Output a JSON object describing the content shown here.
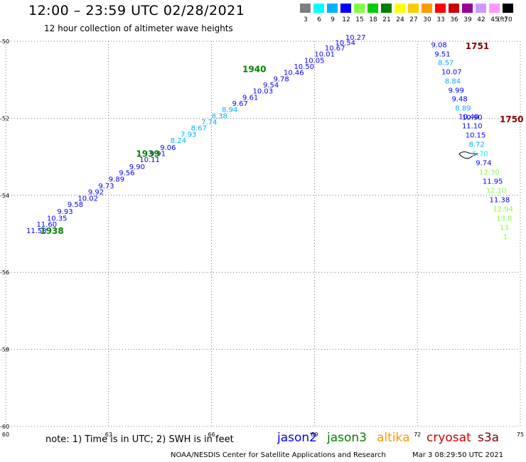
{
  "title": "12:00 – 23:59 UTC 02/28/2021",
  "subtitle": "12 hour collection of altimeter wave heights",
  "color_scale": {
    "labels": [
      "3",
      "6",
      "9",
      "12",
      "15",
      "18",
      "21",
      "24",
      "27",
      "30",
      "33",
      "36",
      "39",
      "42",
      "45",
      "70"
    ],
    "unit": "(ft)",
    "colors": [
      "#7f7f7f",
      "#00ffff",
      "#00b0ff",
      "#0000ff",
      "#80ff40",
      "#00cc00",
      "#008000",
      "#ffff00",
      "#ffcc00",
      "#ff9900",
      "#ff0000",
      "#cc0000",
      "#990099",
      "#cc99ff",
      "#ff99ff",
      "#000000"
    ]
  },
  "note": "note: 1) Time is in UTC; 2) SWH is in feet",
  "satellites": [
    {
      "name": "jason2",
      "color": "#0000ff"
    },
    {
      "name": "jason3",
      "color": "#008000"
    },
    {
      "name": "altika",
      "color": "#ff9900"
    },
    {
      "name": "cryosat",
      "color": "#cc0000"
    },
    {
      "name": "s3a",
      "color": "#800000"
    }
  ],
  "credit_left": "NOAA/NESDIS Center for Satellite Applications and Research",
  "credit_right": "Mar  3 08:29:50 UTC 2021",
  "chart_data": {
    "type": "scatter",
    "title": "12:00 – 23:59 UTC 02/28/2021",
    "xlabel": "",
    "ylabel": "",
    "xlim": [
      60,
      75
    ],
    "ylim": [
      -60,
      -50
    ],
    "xticks": [
      "60",
      "63",
      "66",
      "69",
      "72",
      "75"
    ],
    "yticks": [
      "-50",
      "-52",
      "-54",
      "-56",
      "-58",
      "-60"
    ],
    "grid": true,
    "series": [
      {
        "name": "jason3",
        "color": "#008000",
        "time_labels": [
          {
            "text": "1938",
            "x": 61.0,
            "y": -55.0
          },
          {
            "text": "1939",
            "x": 63.8,
            "y": -53.0
          },
          {
            "text": "1940",
            "x": 66.9,
            "y": -50.8
          }
        ],
        "points": [
          {
            "x": 60.6,
            "y": -54.98,
            "v": "11.58",
            "c": "#0000ff"
          },
          {
            "x": 60.9,
            "y": -54.82,
            "v": "11.60",
            "c": "#0000ff"
          },
          {
            "x": 61.2,
            "y": -54.66,
            "v": "10.35",
            "c": "#0000ff"
          },
          {
            "x": 61.5,
            "y": -54.48,
            "v": "9.93",
            "c": "#0000ff"
          },
          {
            "x": 61.8,
            "y": -54.3,
            "v": "9.58",
            "c": "#0000ff"
          },
          {
            "x": 62.1,
            "y": -54.14,
            "v": "10.02",
            "c": "#0000ff"
          },
          {
            "x": 62.4,
            "y": -53.98,
            "v": "9.92",
            "c": "#0000ff"
          },
          {
            "x": 62.7,
            "y": -53.82,
            "v": "9.73",
            "c": "#0000ff"
          },
          {
            "x": 63.0,
            "y": -53.64,
            "v": "9.89",
            "c": "#0000ff"
          },
          {
            "x": 63.3,
            "y": -53.48,
            "v": "9.56",
            "c": "#0000ff"
          },
          {
            "x": 63.6,
            "y": -53.32,
            "v": "9.90",
            "c": "#0000ff"
          },
          {
            "x": 63.9,
            "y": -53.14,
            "v": "10.11",
            "c": "#0000ff"
          },
          {
            "x": 64.2,
            "y": -52.98,
            "v": "9.91",
            "c": "#0000ff"
          },
          {
            "x": 64.5,
            "y": -52.82,
            "v": "9.06",
            "c": "#0000ff"
          },
          {
            "x": 64.8,
            "y": -52.64,
            "v": "8.24",
            "c": "#00b0ff"
          },
          {
            "x": 65.1,
            "y": -52.48,
            "v": "7.93",
            "c": "#00b0ff"
          },
          {
            "x": 65.4,
            "y": -52.32,
            "v": "8.67",
            "c": "#00b0ff"
          },
          {
            "x": 65.7,
            "y": -52.16,
            "v": "7.74",
            "c": "#00b0ff"
          },
          {
            "x": 66.0,
            "y": -52.0,
            "v": "8.38",
            "c": "#00b0ff"
          },
          {
            "x": 66.3,
            "y": -51.84,
            "v": "8.94",
            "c": "#00b0ff"
          },
          {
            "x": 66.6,
            "y": -51.68,
            "v": "9.67",
            "c": "#0000ff"
          },
          {
            "x": 66.9,
            "y": -51.52,
            "v": "9.61",
            "c": "#0000ff"
          },
          {
            "x": 67.2,
            "y": -51.36,
            "v": "10.03",
            "c": "#0000ff"
          },
          {
            "x": 67.5,
            "y": -51.2,
            "v": "9.54",
            "c": "#0000ff"
          },
          {
            "x": 67.8,
            "y": -51.04,
            "v": "9.78",
            "c": "#0000ff"
          },
          {
            "x": 68.1,
            "y": -50.88,
            "v": "10.46",
            "c": "#0000ff"
          },
          {
            "x": 68.4,
            "y": -50.72,
            "v": "10.50",
            "c": "#0000ff"
          },
          {
            "x": 68.7,
            "y": -50.56,
            "v": "10.05",
            "c": "#0000ff"
          },
          {
            "x": 69.0,
            "y": -50.4,
            "v": "10.01",
            "c": "#0000ff"
          },
          {
            "x": 69.3,
            "y": -50.24,
            "v": "10.67",
            "c": "#0000ff"
          },
          {
            "x": 69.6,
            "y": -50.1,
            "v": "10.54",
            "c": "#0000ff"
          },
          {
            "x": 69.9,
            "y": -49.96,
            "v": "10.27",
            "c": "#0000ff"
          }
        ]
      },
      {
        "name": "s3a",
        "color": "#800000",
        "time_labels": [
          {
            "text": "1751",
            "x": 73.4,
            "y": -50.2
          },
          {
            "text": "1750",
            "x": 74.4,
            "y": -52.1
          }
        ],
        "points": [
          {
            "x": 72.4,
            "y": -50.16,
            "v": "9.08",
            "c": "#0000ff"
          },
          {
            "x": 72.5,
            "y": -50.4,
            "v": "9.51",
            "c": "#0000ff"
          },
          {
            "x": 72.6,
            "y": -50.62,
            "v": "8.57",
            "c": "#00b0ff"
          },
          {
            "x": 72.7,
            "y": -50.86,
            "v": "10.07",
            "c": "#0000ff"
          },
          {
            "x": 72.8,
            "y": -51.1,
            "v": "8.84",
            "c": "#00b0ff"
          },
          {
            "x": 72.9,
            "y": -51.34,
            "v": "9.99",
            "c": "#0000ff"
          },
          {
            "x": 73.0,
            "y": -51.56,
            "v": "9.48",
            "c": "#0000ff"
          },
          {
            "x": 73.1,
            "y": -51.8,
            "v": "8.89",
            "c": "#00b0ff"
          },
          {
            "x": 73.2,
            "y": -52.02,
            "v": "10.40",
            "c": "#0000ff"
          },
          {
            "x": 73.3,
            "y": -52.04,
            "v": "10.90",
            "c": "#0000ff"
          },
          {
            "x": 73.3,
            "y": -52.26,
            "v": "11.10",
            "c": "#0000ff"
          },
          {
            "x": 73.4,
            "y": -52.5,
            "v": "10.15",
            "c": "#0000ff"
          },
          {
            "x": 73.5,
            "y": -52.74,
            "v": "8.72",
            "c": "#00b0ff"
          },
          {
            "x": 73.6,
            "y": -52.98,
            "v": "5.70",
            "c": "#00ffff"
          },
          {
            "x": 73.7,
            "y": -53.22,
            "v": "9.74",
            "c": "#0000ff"
          },
          {
            "x": 73.8,
            "y": -53.46,
            "v": "12.30",
            "c": "#80ff40"
          },
          {
            "x": 73.9,
            "y": -53.7,
            "v": "11.95",
            "c": "#0000ff"
          },
          {
            "x": 74.0,
            "y": -53.94,
            "v": "12.10",
            "c": "#80ff40"
          },
          {
            "x": 74.1,
            "y": -54.18,
            "v": "11.38",
            "c": "#0000ff"
          },
          {
            "x": 74.2,
            "y": -54.42,
            "v": "12.94",
            "c": "#80ff40"
          },
          {
            "x": 74.3,
            "y": -54.66,
            "v": "13.8",
            "c": "#80ff40"
          },
          {
            "x": 74.4,
            "y": -54.9,
            "v": "13.",
            "c": "#80ff40"
          },
          {
            "x": 74.5,
            "y": -55.14,
            "v": "1.",
            "c": "#80ff40"
          }
        ]
      }
    ]
  }
}
